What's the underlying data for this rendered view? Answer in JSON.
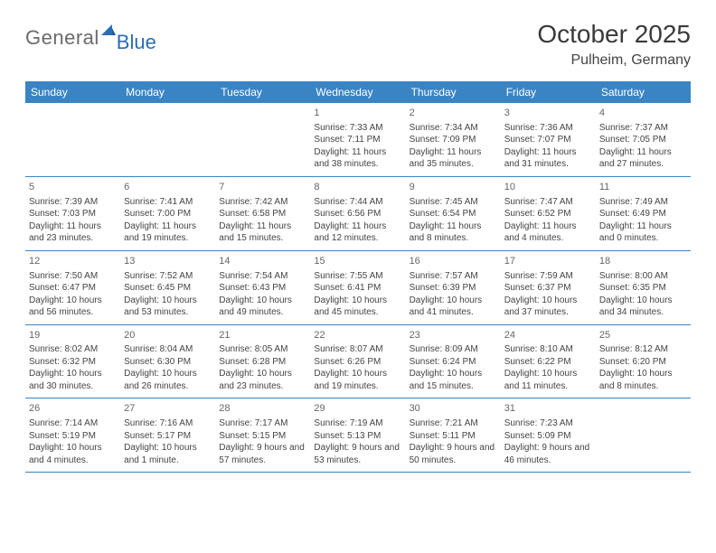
{
  "logo": {
    "text1": "General",
    "text2": "Blue"
  },
  "title": {
    "month": "October 2025",
    "location": "Pulheim, Germany"
  },
  "colors": {
    "header_bg": "#3b84c4",
    "header_text": "#ffffff",
    "rule": "#3b84c4",
    "body_text": "#444444",
    "logo_gray": "#6b6b6b",
    "logo_blue": "#2a6db5",
    "page_bg": "#ffffff"
  },
  "day_names": [
    "Sunday",
    "Monday",
    "Tuesday",
    "Wednesday",
    "Thursday",
    "Friday",
    "Saturday"
  ],
  "weeks": [
    [
      {
        "empty": true
      },
      {
        "empty": true
      },
      {
        "empty": true
      },
      {
        "num": "1",
        "sunrise": "Sunrise: 7:33 AM",
        "sunset": "Sunset: 7:11 PM",
        "daylight": "Daylight: 11 hours and 38 minutes."
      },
      {
        "num": "2",
        "sunrise": "Sunrise: 7:34 AM",
        "sunset": "Sunset: 7:09 PM",
        "daylight": "Daylight: 11 hours and 35 minutes."
      },
      {
        "num": "3",
        "sunrise": "Sunrise: 7:36 AM",
        "sunset": "Sunset: 7:07 PM",
        "daylight": "Daylight: 11 hours and 31 minutes."
      },
      {
        "num": "4",
        "sunrise": "Sunrise: 7:37 AM",
        "sunset": "Sunset: 7:05 PM",
        "daylight": "Daylight: 11 hours and 27 minutes."
      }
    ],
    [
      {
        "num": "5",
        "sunrise": "Sunrise: 7:39 AM",
        "sunset": "Sunset: 7:03 PM",
        "daylight": "Daylight: 11 hours and 23 minutes."
      },
      {
        "num": "6",
        "sunrise": "Sunrise: 7:41 AM",
        "sunset": "Sunset: 7:00 PM",
        "daylight": "Daylight: 11 hours and 19 minutes."
      },
      {
        "num": "7",
        "sunrise": "Sunrise: 7:42 AM",
        "sunset": "Sunset: 6:58 PM",
        "daylight": "Daylight: 11 hours and 15 minutes."
      },
      {
        "num": "8",
        "sunrise": "Sunrise: 7:44 AM",
        "sunset": "Sunset: 6:56 PM",
        "daylight": "Daylight: 11 hours and 12 minutes."
      },
      {
        "num": "9",
        "sunrise": "Sunrise: 7:45 AM",
        "sunset": "Sunset: 6:54 PM",
        "daylight": "Daylight: 11 hours and 8 minutes."
      },
      {
        "num": "10",
        "sunrise": "Sunrise: 7:47 AM",
        "sunset": "Sunset: 6:52 PM",
        "daylight": "Daylight: 11 hours and 4 minutes."
      },
      {
        "num": "11",
        "sunrise": "Sunrise: 7:49 AM",
        "sunset": "Sunset: 6:49 PM",
        "daylight": "Daylight: 11 hours and 0 minutes."
      }
    ],
    [
      {
        "num": "12",
        "sunrise": "Sunrise: 7:50 AM",
        "sunset": "Sunset: 6:47 PM",
        "daylight": "Daylight: 10 hours and 56 minutes."
      },
      {
        "num": "13",
        "sunrise": "Sunrise: 7:52 AM",
        "sunset": "Sunset: 6:45 PM",
        "daylight": "Daylight: 10 hours and 53 minutes."
      },
      {
        "num": "14",
        "sunrise": "Sunrise: 7:54 AM",
        "sunset": "Sunset: 6:43 PM",
        "daylight": "Daylight: 10 hours and 49 minutes."
      },
      {
        "num": "15",
        "sunrise": "Sunrise: 7:55 AM",
        "sunset": "Sunset: 6:41 PM",
        "daylight": "Daylight: 10 hours and 45 minutes."
      },
      {
        "num": "16",
        "sunrise": "Sunrise: 7:57 AM",
        "sunset": "Sunset: 6:39 PM",
        "daylight": "Daylight: 10 hours and 41 minutes."
      },
      {
        "num": "17",
        "sunrise": "Sunrise: 7:59 AM",
        "sunset": "Sunset: 6:37 PM",
        "daylight": "Daylight: 10 hours and 37 minutes."
      },
      {
        "num": "18",
        "sunrise": "Sunrise: 8:00 AM",
        "sunset": "Sunset: 6:35 PM",
        "daylight": "Daylight: 10 hours and 34 minutes."
      }
    ],
    [
      {
        "num": "19",
        "sunrise": "Sunrise: 8:02 AM",
        "sunset": "Sunset: 6:32 PM",
        "daylight": "Daylight: 10 hours and 30 minutes."
      },
      {
        "num": "20",
        "sunrise": "Sunrise: 8:04 AM",
        "sunset": "Sunset: 6:30 PM",
        "daylight": "Daylight: 10 hours and 26 minutes."
      },
      {
        "num": "21",
        "sunrise": "Sunrise: 8:05 AM",
        "sunset": "Sunset: 6:28 PM",
        "daylight": "Daylight: 10 hours and 23 minutes."
      },
      {
        "num": "22",
        "sunrise": "Sunrise: 8:07 AM",
        "sunset": "Sunset: 6:26 PM",
        "daylight": "Daylight: 10 hours and 19 minutes."
      },
      {
        "num": "23",
        "sunrise": "Sunrise: 8:09 AM",
        "sunset": "Sunset: 6:24 PM",
        "daylight": "Daylight: 10 hours and 15 minutes."
      },
      {
        "num": "24",
        "sunrise": "Sunrise: 8:10 AM",
        "sunset": "Sunset: 6:22 PM",
        "daylight": "Daylight: 10 hours and 11 minutes."
      },
      {
        "num": "25",
        "sunrise": "Sunrise: 8:12 AM",
        "sunset": "Sunset: 6:20 PM",
        "daylight": "Daylight: 10 hours and 8 minutes."
      }
    ],
    [
      {
        "num": "26",
        "sunrise": "Sunrise: 7:14 AM",
        "sunset": "Sunset: 5:19 PM",
        "daylight": "Daylight: 10 hours and 4 minutes."
      },
      {
        "num": "27",
        "sunrise": "Sunrise: 7:16 AM",
        "sunset": "Sunset: 5:17 PM",
        "daylight": "Daylight: 10 hours and 1 minute."
      },
      {
        "num": "28",
        "sunrise": "Sunrise: 7:17 AM",
        "sunset": "Sunset: 5:15 PM",
        "daylight": "Daylight: 9 hours and 57 minutes."
      },
      {
        "num": "29",
        "sunrise": "Sunrise: 7:19 AM",
        "sunset": "Sunset: 5:13 PM",
        "daylight": "Daylight: 9 hours and 53 minutes."
      },
      {
        "num": "30",
        "sunrise": "Sunrise: 7:21 AM",
        "sunset": "Sunset: 5:11 PM",
        "daylight": "Daylight: 9 hours and 50 minutes."
      },
      {
        "num": "31",
        "sunrise": "Sunrise: 7:23 AM",
        "sunset": "Sunset: 5:09 PM",
        "daylight": "Daylight: 9 hours and 46 minutes."
      },
      {
        "empty": true
      }
    ]
  ]
}
